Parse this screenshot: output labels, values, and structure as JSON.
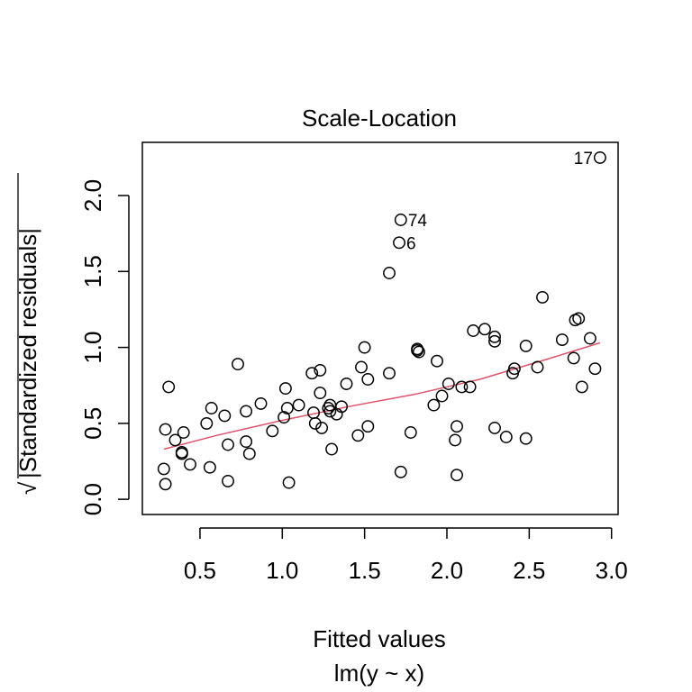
{
  "chart_data": {
    "type": "scatter",
    "title": "Scale-Location",
    "xlabel": "Fitted values",
    "subtitle": "lm(y ~ x)",
    "ylabel_radical": "√",
    "ylabel": "|Standardized residuals|",
    "xlim": [
      0.15,
      3.04
    ],
    "ylim": [
      -0.1,
      2.35
    ],
    "x_ticks": [
      0.5,
      1.0,
      1.5,
      2.0,
      2.5,
      3.0
    ],
    "x_tick_labels": [
      "0.5",
      "1.0",
      "1.5",
      "2.0",
      "2.5",
      "3.0"
    ],
    "y_ticks": [
      0.0,
      0.5,
      1.0,
      1.5,
      2.0
    ],
    "y_tick_labels": [
      "0.0",
      "0.5",
      "1.0",
      "1.5",
      "2.0"
    ],
    "grid": false,
    "smooth_color": "#DF536B",
    "point_color": "#000000",
    "points": [
      {
        "x": 0.28,
        "y": 0.2
      },
      {
        "x": 0.29,
        "y": 0.1
      },
      {
        "x": 0.29,
        "y": 0.46
      },
      {
        "x": 0.31,
        "y": 0.74
      },
      {
        "x": 0.35,
        "y": 0.39
      },
      {
        "x": 0.39,
        "y": 0.31
      },
      {
        "x": 0.39,
        "y": 0.3
      },
      {
        "x": 0.4,
        "y": 0.44
      },
      {
        "x": 0.44,
        "y": 0.23
      },
      {
        "x": 0.54,
        "y": 0.5
      },
      {
        "x": 0.56,
        "y": 0.21
      },
      {
        "x": 0.57,
        "y": 0.6
      },
      {
        "x": 0.65,
        "y": 0.55
      },
      {
        "x": 0.67,
        "y": 0.36
      },
      {
        "x": 0.67,
        "y": 0.12
      },
      {
        "x": 0.73,
        "y": 0.89
      },
      {
        "x": 0.78,
        "y": 0.38
      },
      {
        "x": 0.78,
        "y": 0.58
      },
      {
        "x": 0.8,
        "y": 0.3
      },
      {
        "x": 0.87,
        "y": 0.63
      },
      {
        "x": 0.94,
        "y": 0.45
      },
      {
        "x": 1.01,
        "y": 0.54
      },
      {
        "x": 1.02,
        "y": 0.73
      },
      {
        "x": 1.03,
        "y": 0.6
      },
      {
        "x": 1.04,
        "y": 0.11
      },
      {
        "x": 1.1,
        "y": 0.62
      },
      {
        "x": 1.18,
        "y": 0.83
      },
      {
        "x": 1.19,
        "y": 0.57
      },
      {
        "x": 1.2,
        "y": 0.5
      },
      {
        "x": 1.23,
        "y": 0.85
      },
      {
        "x": 1.23,
        "y": 0.7
      },
      {
        "x": 1.24,
        "y": 0.47
      },
      {
        "x": 1.28,
        "y": 0.6
      },
      {
        "x": 1.29,
        "y": 0.62
      },
      {
        "x": 1.29,
        "y": 0.58
      },
      {
        "x": 1.3,
        "y": 0.33
      },
      {
        "x": 1.33,
        "y": 0.56
      },
      {
        "x": 1.36,
        "y": 0.61
      },
      {
        "x": 1.39,
        "y": 0.76
      },
      {
        "x": 1.46,
        "y": 0.42
      },
      {
        "x": 1.48,
        "y": 0.87
      },
      {
        "x": 1.5,
        "y": 1.0
      },
      {
        "x": 1.52,
        "y": 0.79
      },
      {
        "x": 1.52,
        "y": 0.48
      },
      {
        "x": 1.65,
        "y": 1.49
      },
      {
        "x": 1.65,
        "y": 0.83
      },
      {
        "x": 1.71,
        "y": 1.69
      },
      {
        "x": 1.72,
        "y": 0.18
      },
      {
        "x": 1.72,
        "y": 1.84
      },
      {
        "x": 1.78,
        "y": 0.44
      },
      {
        "x": 1.82,
        "y": 0.98
      },
      {
        "x": 1.82,
        "y": 0.99
      },
      {
        "x": 1.83,
        "y": 0.97
      },
      {
        "x": 1.92,
        "y": 0.62
      },
      {
        "x": 1.94,
        "y": 0.91
      },
      {
        "x": 1.97,
        "y": 0.68
      },
      {
        "x": 2.01,
        "y": 0.76
      },
      {
        "x": 2.05,
        "y": 0.39
      },
      {
        "x": 2.06,
        "y": 0.48
      },
      {
        "x": 2.06,
        "y": 0.16
      },
      {
        "x": 2.09,
        "y": 0.74
      },
      {
        "x": 2.14,
        "y": 0.74
      },
      {
        "x": 2.16,
        "y": 1.11
      },
      {
        "x": 2.23,
        "y": 1.12
      },
      {
        "x": 2.29,
        "y": 1.07
      },
      {
        "x": 2.29,
        "y": 1.04
      },
      {
        "x": 2.29,
        "y": 0.47
      },
      {
        "x": 2.36,
        "y": 0.41
      },
      {
        "x": 2.4,
        "y": 0.83
      },
      {
        "x": 2.41,
        "y": 0.86
      },
      {
        "x": 2.48,
        "y": 1.01
      },
      {
        "x": 2.48,
        "y": 0.4
      },
      {
        "x": 2.55,
        "y": 0.87
      },
      {
        "x": 2.58,
        "y": 1.33
      },
      {
        "x": 2.7,
        "y": 1.05
      },
      {
        "x": 2.77,
        "y": 0.93
      },
      {
        "x": 2.78,
        "y": 1.18
      },
      {
        "x": 2.8,
        "y": 1.19
      },
      {
        "x": 2.82,
        "y": 0.74
      },
      {
        "x": 2.87,
        "y": 1.06
      },
      {
        "x": 2.9,
        "y": 0.86
      },
      {
        "x": 2.93,
        "y": 2.25
      }
    ],
    "annotations": [
      {
        "label": "17",
        "x": 2.93,
        "y": 2.25,
        "side": "left"
      },
      {
        "label": "74",
        "x": 1.72,
        "y": 1.84,
        "side": "right"
      },
      {
        "label": "6",
        "x": 1.71,
        "y": 1.69,
        "side": "right"
      }
    ],
    "smooth": [
      {
        "x": 0.28,
        "y": 0.33
      },
      {
        "x": 0.6,
        "y": 0.42
      },
      {
        "x": 1.0,
        "y": 0.52
      },
      {
        "x": 1.4,
        "y": 0.61
      },
      {
        "x": 1.8,
        "y": 0.69
      },
      {
        "x": 2.2,
        "y": 0.79
      },
      {
        "x": 2.6,
        "y": 0.92
      },
      {
        "x": 2.93,
        "y": 1.03
      }
    ]
  }
}
